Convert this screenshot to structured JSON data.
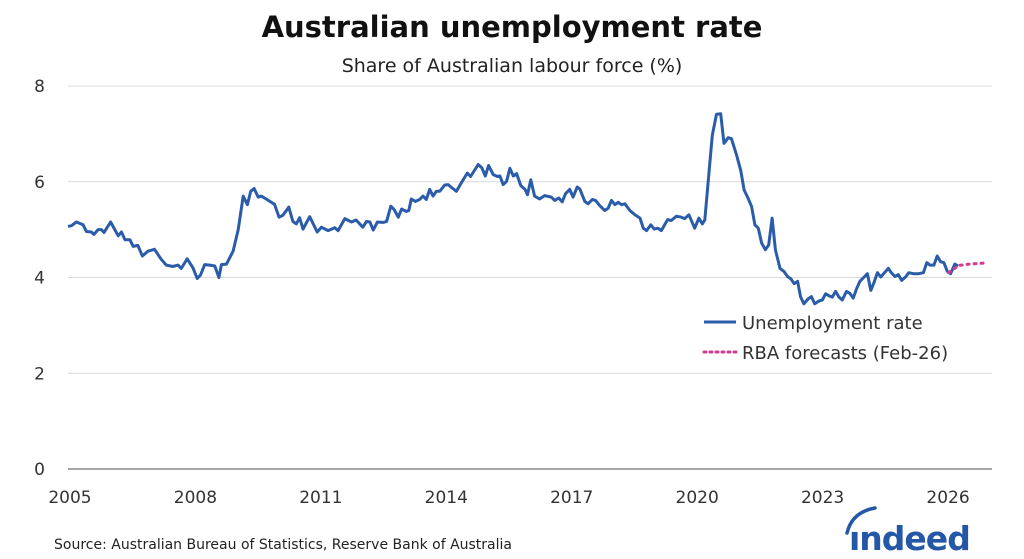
{
  "title": "Australian unemployment rate",
  "subtitle": "Share of Australian labour force (%)",
  "source": "Source: Australian Bureau of Statistics, Reserve Bank of Australia",
  "logo_text": "indeed",
  "colors": {
    "series": "#2a5caa",
    "forecast": "#d23c8c",
    "grid": "#d9d9d9",
    "axis": "#888888",
    "logo": "#2557a7"
  },
  "chart_data": {
    "type": "line",
    "title": "Australian unemployment rate",
    "subtitle": "Share of Australian labour force (%)",
    "xlabel": "",
    "ylabel": "",
    "xlim": [
      2005,
      2027.1
    ],
    "ylim": [
      0,
      8
    ],
    "x_ticks": [
      "2005",
      "2008",
      "2011",
      "2014",
      "2017",
      "2020",
      "2023",
      "2026"
    ],
    "y_ticks": [
      "0",
      "2",
      "4",
      "6",
      "8"
    ],
    "grid": "horizontal",
    "legend_position": "right",
    "legend": [
      "Unemployment rate",
      "RBA forecasts (Feb-26)"
    ],
    "series": [
      {
        "name": "Unemployment rate",
        "style": "solid",
        "points": [
          [
            2005.0,
            5.07
          ],
          [
            2005.08,
            5.08
          ],
          [
            2005.2,
            5.16
          ],
          [
            2005.36,
            5.1
          ],
          [
            2005.44,
            4.96
          ],
          [
            2005.56,
            4.95
          ],
          [
            2005.62,
            4.9
          ],
          [
            2005.72,
            5.0
          ],
          [
            2005.8,
            5.0
          ],
          [
            2005.86,
            4.94
          ],
          [
            2006.02,
            5.16
          ],
          [
            2006.2,
            4.87
          ],
          [
            2006.28,
            4.95
          ],
          [
            2006.36,
            4.79
          ],
          [
            2006.48,
            4.79
          ],
          [
            2006.56,
            4.65
          ],
          [
            2006.67,
            4.67
          ],
          [
            2006.78,
            4.45
          ],
          [
            2006.91,
            4.55
          ],
          [
            2007.07,
            4.59
          ],
          [
            2007.23,
            4.38
          ],
          [
            2007.35,
            4.26
          ],
          [
            2007.51,
            4.23
          ],
          [
            2007.63,
            4.26
          ],
          [
            2007.71,
            4.19
          ],
          [
            2007.85,
            4.39
          ],
          [
            2007.99,
            4.2
          ],
          [
            2008.09,
            3.98
          ],
          [
            2008.17,
            4.05
          ],
          [
            2008.27,
            4.27
          ],
          [
            2008.39,
            4.26
          ],
          [
            2008.51,
            4.24
          ],
          [
            2008.61,
            4.0
          ],
          [
            2008.67,
            4.27
          ],
          [
            2008.79,
            4.28
          ],
          [
            2008.95,
            4.55
          ],
          [
            2009.07,
            5.0
          ],
          [
            2009.19,
            5.7
          ],
          [
            2009.29,
            5.52
          ],
          [
            2009.37,
            5.8
          ],
          [
            2009.45,
            5.86
          ],
          [
            2009.55,
            5.68
          ],
          [
            2009.62,
            5.7
          ],
          [
            2009.74,
            5.64
          ],
          [
            2009.94,
            5.53
          ],
          [
            2010.05,
            5.26
          ],
          [
            2010.14,
            5.3
          ],
          [
            2010.28,
            5.47
          ],
          [
            2010.38,
            5.17
          ],
          [
            2010.46,
            5.12
          ],
          [
            2010.54,
            5.25
          ],
          [
            2010.62,
            5.01
          ],
          [
            2010.78,
            5.27
          ],
          [
            2010.96,
            4.95
          ],
          [
            2011.06,
            5.05
          ],
          [
            2011.22,
            4.98
          ],
          [
            2011.38,
            5.04
          ],
          [
            2011.46,
            4.98
          ],
          [
            2011.62,
            5.23
          ],
          [
            2011.78,
            5.16
          ],
          [
            2011.89,
            5.2
          ],
          [
            2012.05,
            5.05
          ],
          [
            2012.14,
            5.17
          ],
          [
            2012.22,
            5.16
          ],
          [
            2012.3,
            4.99
          ],
          [
            2012.4,
            5.16
          ],
          [
            2012.54,
            5.15
          ],
          [
            2012.62,
            5.17
          ],
          [
            2012.72,
            5.49
          ],
          [
            2012.8,
            5.42
          ],
          [
            2012.9,
            5.26
          ],
          [
            2012.98,
            5.43
          ],
          [
            2013.09,
            5.38
          ],
          [
            2013.15,
            5.4
          ],
          [
            2013.21,
            5.64
          ],
          [
            2013.31,
            5.59
          ],
          [
            2013.41,
            5.63
          ],
          [
            2013.49,
            5.7
          ],
          [
            2013.57,
            5.63
          ],
          [
            2013.65,
            5.84
          ],
          [
            2013.73,
            5.7
          ],
          [
            2013.81,
            5.8
          ],
          [
            2013.89,
            5.8
          ],
          [
            2014.01,
            5.93
          ],
          [
            2014.09,
            5.94
          ],
          [
            2014.19,
            5.87
          ],
          [
            2014.29,
            5.8
          ],
          [
            2014.41,
            5.98
          ],
          [
            2014.55,
            6.18
          ],
          [
            2014.63,
            6.11
          ],
          [
            2014.81,
            6.36
          ],
          [
            2014.9,
            6.29
          ],
          [
            2014.98,
            6.12
          ],
          [
            2015.06,
            6.34
          ],
          [
            2015.17,
            6.15
          ],
          [
            2015.27,
            6.11
          ],
          [
            2015.33,
            6.12
          ],
          [
            2015.41,
            5.94
          ],
          [
            2015.49,
            6.01
          ],
          [
            2015.57,
            6.28
          ],
          [
            2015.65,
            6.12
          ],
          [
            2015.73,
            6.17
          ],
          [
            2015.83,
            5.92
          ],
          [
            2015.93,
            5.84
          ],
          [
            2015.99,
            5.73
          ],
          [
            2016.07,
            6.04
          ],
          [
            2016.16,
            5.7
          ],
          [
            2016.28,
            5.64
          ],
          [
            2016.4,
            5.71
          ],
          [
            2016.56,
            5.68
          ],
          [
            2016.64,
            5.61
          ],
          [
            2016.74,
            5.66
          ],
          [
            2016.82,
            5.58
          ],
          [
            2016.9,
            5.75
          ],
          [
            2017.0,
            5.84
          ],
          [
            2017.08,
            5.68
          ],
          [
            2017.18,
            5.89
          ],
          [
            2017.24,
            5.85
          ],
          [
            2017.36,
            5.59
          ],
          [
            2017.44,
            5.54
          ],
          [
            2017.54,
            5.63
          ],
          [
            2017.62,
            5.61
          ],
          [
            2017.72,
            5.5
          ],
          [
            2017.84,
            5.4
          ],
          [
            2017.92,
            5.45
          ],
          [
            2018.0,
            5.61
          ],
          [
            2018.08,
            5.52
          ],
          [
            2018.16,
            5.57
          ],
          [
            2018.24,
            5.52
          ],
          [
            2018.32,
            5.54
          ],
          [
            2018.44,
            5.4
          ],
          [
            2018.56,
            5.31
          ],
          [
            2018.68,
            5.24
          ],
          [
            2018.76,
            5.03
          ],
          [
            2018.84,
            4.98
          ],
          [
            2018.94,
            5.1
          ],
          [
            2019.02,
            5.01
          ],
          [
            2019.11,
            5.03
          ],
          [
            2019.19,
            4.98
          ],
          [
            2019.34,
            5.21
          ],
          [
            2019.43,
            5.19
          ],
          [
            2019.55,
            5.28
          ],
          [
            2019.67,
            5.26
          ],
          [
            2019.75,
            5.23
          ],
          [
            2019.85,
            5.31
          ],
          [
            2019.99,
            5.03
          ],
          [
            2020.09,
            5.24
          ],
          [
            2020.17,
            5.12
          ],
          [
            2020.23,
            5.2
          ],
          [
            2020.33,
            6.17
          ],
          [
            2020.41,
            6.97
          ],
          [
            2020.51,
            7.41
          ],
          [
            2020.61,
            7.42
          ],
          [
            2020.69,
            6.8
          ],
          [
            2020.79,
            6.92
          ],
          [
            2020.87,
            6.9
          ],
          [
            2020.99,
            6.56
          ],
          [
            2021.09,
            6.24
          ],
          [
            2021.17,
            5.83
          ],
          [
            2021.27,
            5.65
          ],
          [
            2021.35,
            5.48
          ],
          [
            2021.43,
            5.1
          ],
          [
            2021.51,
            5.03
          ],
          [
            2021.59,
            4.72
          ],
          [
            2021.68,
            4.58
          ],
          [
            2021.76,
            4.68
          ],
          [
            2021.84,
            5.24
          ],
          [
            2021.92,
            4.58
          ],
          [
            2022.03,
            4.19
          ],
          [
            2022.12,
            4.13
          ],
          [
            2022.21,
            4.02
          ],
          [
            2022.29,
            3.97
          ],
          [
            2022.37,
            3.87
          ],
          [
            2022.45,
            3.92
          ],
          [
            2022.52,
            3.6
          ],
          [
            2022.6,
            3.45
          ],
          [
            2022.7,
            3.55
          ],
          [
            2022.78,
            3.6
          ],
          [
            2022.86,
            3.45
          ],
          [
            2022.96,
            3.51
          ],
          [
            2023.04,
            3.53
          ],
          [
            2023.12,
            3.66
          ],
          [
            2023.2,
            3.62
          ],
          [
            2023.28,
            3.59
          ],
          [
            2023.36,
            3.71
          ],
          [
            2023.44,
            3.59
          ],
          [
            2023.52,
            3.53
          ],
          [
            2023.62,
            3.71
          ],
          [
            2023.7,
            3.67
          ],
          [
            2023.78,
            3.57
          ],
          [
            2023.86,
            3.76
          ],
          [
            2023.94,
            3.92
          ],
          [
            2024.02,
            3.99
          ],
          [
            2024.12,
            4.08
          ],
          [
            2024.2,
            3.73
          ],
          [
            2024.28,
            3.9
          ],
          [
            2024.36,
            4.1
          ],
          [
            2024.44,
            4.01
          ],
          [
            2024.52,
            4.09
          ],
          [
            2024.62,
            4.19
          ],
          [
            2024.7,
            4.09
          ],
          [
            2024.78,
            4.02
          ],
          [
            2024.86,
            4.06
          ],
          [
            2024.94,
            3.94
          ],
          [
            2025.03,
            4.01
          ],
          [
            2025.11,
            4.1
          ],
          [
            2025.22,
            4.08
          ],
          [
            2025.34,
            4.08
          ],
          [
            2025.46,
            4.1
          ],
          [
            2025.54,
            4.31
          ],
          [
            2025.62,
            4.26
          ],
          [
            2025.71,
            4.26
          ],
          [
            2025.79,
            4.45
          ],
          [
            2025.87,
            4.33
          ],
          [
            2025.95,
            4.31
          ],
          [
            2026.03,
            4.13
          ],
          [
            2026.11,
            4.08
          ],
          [
            2026.21,
            4.28
          ],
          [
            2026.29,
            4.24
          ]
        ]
      },
      {
        "name": "RBA forecasts (Feb-26)",
        "style": "dotted",
        "points": [
          [
            2026.06,
            4.1
          ],
          [
            2026.3,
            4.25
          ],
          [
            2026.55,
            4.28
          ],
          [
            2026.9,
            4.3
          ]
        ]
      }
    ]
  }
}
